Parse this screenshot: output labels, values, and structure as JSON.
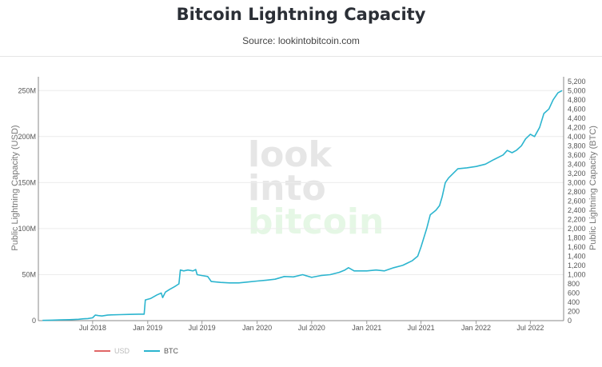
{
  "header": {
    "title": "Bitcoin Lightning Capacity",
    "subtitle": "Source: lookintobitcoin.com"
  },
  "watermark": [
    "look",
    "into",
    "bitcoin"
  ],
  "colors": {
    "btc_line": "#2cb5cf",
    "usd_line": "#e06666",
    "watermark_gray": "#e6e6e6",
    "watermark_green": "#e5f7e5"
  },
  "chart_data": {
    "type": "line",
    "title": "Bitcoin Lightning Capacity",
    "subtitle": "Source: lookintobitcoin.com",
    "ylabel_left": "Public Lightning Capacity (USD)",
    "ylabel_right": "Public Lightning Capacity (BTC)",
    "x_range": [
      "2018-01-01",
      "2022-10-20"
    ],
    "x_ticks": [
      {
        "date": "2018-07-01",
        "label": "Jul 2018"
      },
      {
        "date": "2019-01-01",
        "label": "Jan 2019"
      },
      {
        "date": "2019-07-01",
        "label": "Jul 2019"
      },
      {
        "date": "2020-01-01",
        "label": "Jan 2020"
      },
      {
        "date": "2020-07-01",
        "label": "Jul 2020"
      },
      {
        "date": "2021-01-01",
        "label": "Jan 2021"
      },
      {
        "date": "2021-07-01",
        "label": "Jul 2021"
      },
      {
        "date": "2022-01-01",
        "label": "Jan 2022"
      },
      {
        "date": "2022-07-01",
        "label": "Jul 2022"
      }
    ],
    "y_left": {
      "range": [
        0,
        265000000
      ],
      "ticks": [
        {
          "value": 0,
          "label": "0"
        },
        {
          "value": 50000000,
          "label": "50M"
        },
        {
          "value": 100000000,
          "label": "100M"
        },
        {
          "value": 150000000,
          "label": "150M"
        },
        {
          "value": 200000000,
          "label": "200M"
        },
        {
          "value": 250000000,
          "label": "250M"
        }
      ]
    },
    "y_right": {
      "range": [
        0,
        5300
      ],
      "ticks": [
        {
          "value": 0,
          "label": "0"
        },
        {
          "value": 200,
          "label": "200"
        },
        {
          "value": 400,
          "label": "400"
        },
        {
          "value": 600,
          "label": "600"
        },
        {
          "value": 800,
          "label": "800"
        },
        {
          "value": 1000,
          "label": "1,000"
        },
        {
          "value": 1200,
          "label": "1,200"
        },
        {
          "value": 1400,
          "label": "1,400"
        },
        {
          "value": 1600,
          "label": "1,600"
        },
        {
          "value": 1800,
          "label": "1,800"
        },
        {
          "value": 2000,
          "label": "2,000"
        },
        {
          "value": 2200,
          "label": "2,200"
        },
        {
          "value": 2400,
          "label": "2,400"
        },
        {
          "value": 2600,
          "label": "2,600"
        },
        {
          "value": 2800,
          "label": "2,800"
        },
        {
          "value": 3000,
          "label": "3,000"
        },
        {
          "value": 3200,
          "label": "3,200"
        },
        {
          "value": 3400,
          "label": "3,400"
        },
        {
          "value": 3600,
          "label": "3,600"
        },
        {
          "value": 3800,
          "label": "3,800"
        },
        {
          "value": 4000,
          "label": "4,000"
        },
        {
          "value": 4200,
          "label": "4,200"
        },
        {
          "value": 4400,
          "label": "4,400"
        },
        {
          "value": 4600,
          "label": "4,600"
        },
        {
          "value": 4800,
          "label": "4,800"
        },
        {
          "value": 5000,
          "label": "5,000"
        },
        {
          "value": 5200,
          "label": "5,200"
        }
      ]
    },
    "grid": true,
    "legend": {
      "placement": "bottom-left"
    },
    "series": [
      {
        "name": "USD",
        "axis": "left",
        "visible": false,
        "values": []
      },
      {
        "name": "BTC",
        "axis": "right",
        "visible": true,
        "x": [
          "2018-01-15",
          "2018-02-15",
          "2018-03-15",
          "2018-04-15",
          "2018-05-15",
          "2018-06-01",
          "2018-06-15",
          "2018-07-01",
          "2018-07-10",
          "2018-07-20",
          "2018-08-01",
          "2018-08-20",
          "2018-09-01",
          "2018-10-01",
          "2018-11-01",
          "2018-12-01",
          "2018-12-20",
          "2018-12-24",
          "2019-01-10",
          "2019-02-01",
          "2019-02-15",
          "2019-02-20",
          "2019-03-01",
          "2019-03-15",
          "2019-04-01",
          "2019-04-15",
          "2019-04-20",
          "2019-05-01",
          "2019-05-15",
          "2019-06-01",
          "2019-06-10",
          "2019-06-15",
          "2019-07-01",
          "2019-07-20",
          "2019-08-01",
          "2019-09-01",
          "2019-10-01",
          "2019-11-01",
          "2019-12-01",
          "2020-01-01",
          "2020-02-01",
          "2020-03-01",
          "2020-04-01",
          "2020-05-01",
          "2020-06-01",
          "2020-07-01",
          "2020-08-01",
          "2020-09-01",
          "2020-10-01",
          "2020-10-20",
          "2020-11-01",
          "2020-11-20",
          "2020-12-01",
          "2021-01-01",
          "2021-02-01",
          "2021-03-01",
          "2021-04-01",
          "2021-05-01",
          "2021-06-01",
          "2021-06-20",
          "2021-07-01",
          "2021-07-20",
          "2021-08-01",
          "2021-08-20",
          "2021-09-01",
          "2021-09-10",
          "2021-09-20",
          "2021-10-01",
          "2021-11-01",
          "2021-12-01",
          "2022-01-01",
          "2022-02-01",
          "2022-03-01",
          "2022-04-01",
          "2022-04-15",
          "2022-05-01",
          "2022-05-15",
          "2022-06-01",
          "2022-06-15",
          "2022-07-01",
          "2022-07-15",
          "2022-08-01",
          "2022-08-15",
          "2022-09-01",
          "2022-09-15",
          "2022-10-01",
          "2022-10-15"
        ],
        "values": [
          5,
          10,
          15,
          20,
          30,
          40,
          45,
          60,
          120,
          110,
          100,
          120,
          125,
          130,
          135,
          140,
          140,
          450,
          480,
          560,
          600,
          500,
          620,
          680,
          740,
          800,
          1100,
          1080,
          1100,
          1080,
          1110,
          1000,
          980,
          960,
          850,
          830,
          820,
          820,
          840,
          860,
          880,
          900,
          960,
          950,
          1000,
          940,
          980,
          1000,
          1050,
          1100,
          1150,
          1080,
          1080,
          1080,
          1100,
          1080,
          1150,
          1200,
          1300,
          1400,
          1600,
          2000,
          2300,
          2400,
          2500,
          2700,
          3000,
          3100,
          3300,
          3320,
          3350,
          3400,
          3500,
          3600,
          3700,
          3650,
          3700,
          3800,
          3950,
          4050,
          4000,
          4200,
          4500,
          4600,
          4800,
          4950,
          5000
        ]
      }
    ]
  }
}
